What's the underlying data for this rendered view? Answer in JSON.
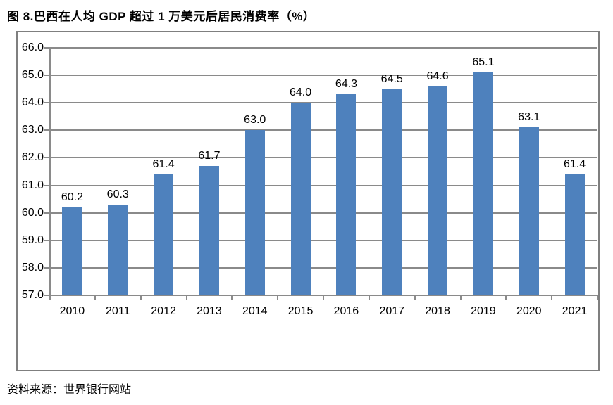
{
  "title": "图 8.巴西在人均 GDP 超过 1 万美元后居民消费率（%）",
  "source_note": "资料来源：世界银行网站",
  "colors": {
    "bar": "#4E81BD",
    "grid": "#8A8A8A",
    "frame": "#7F7F7F",
    "text": "#000000",
    "background": "#FFFFFF"
  },
  "chart_data": {
    "type": "bar",
    "title": "图 8.巴西在人均 GDP 超过 1 万美元后居民消费率（%）",
    "categories": [
      "2010",
      "2011",
      "2012",
      "2013",
      "2014",
      "2015",
      "2016",
      "2017",
      "2018",
      "2019",
      "2020",
      "2021"
    ],
    "values": [
      60.2,
      60.3,
      61.4,
      61.7,
      63.0,
      64.0,
      64.3,
      64.5,
      64.6,
      65.1,
      63.1,
      61.4
    ],
    "value_labels": [
      "60.2",
      "60.3",
      "61.4",
      "61.7",
      "63.0",
      "64.0",
      "64.3",
      "64.5",
      "64.6",
      "65.1",
      "63.1",
      "61.4"
    ],
    "ylim": [
      57.0,
      66.0
    ],
    "yticks": [
      66.0,
      65.0,
      64.0,
      63.0,
      62.0,
      61.0,
      60.0,
      59.0,
      58.0,
      57.0
    ],
    "ytick_labels": [
      "66.0",
      "65.0",
      "64.0",
      "63.0",
      "62.0",
      "61.0",
      "60.0",
      "59.0",
      "58.0",
      "57.0"
    ],
    "xlabel": "",
    "ylabel": "",
    "grid": "horizontal",
    "legend": "none",
    "bar_color": "#4E81BD",
    "source": "资料来源：世界银行网站"
  }
}
